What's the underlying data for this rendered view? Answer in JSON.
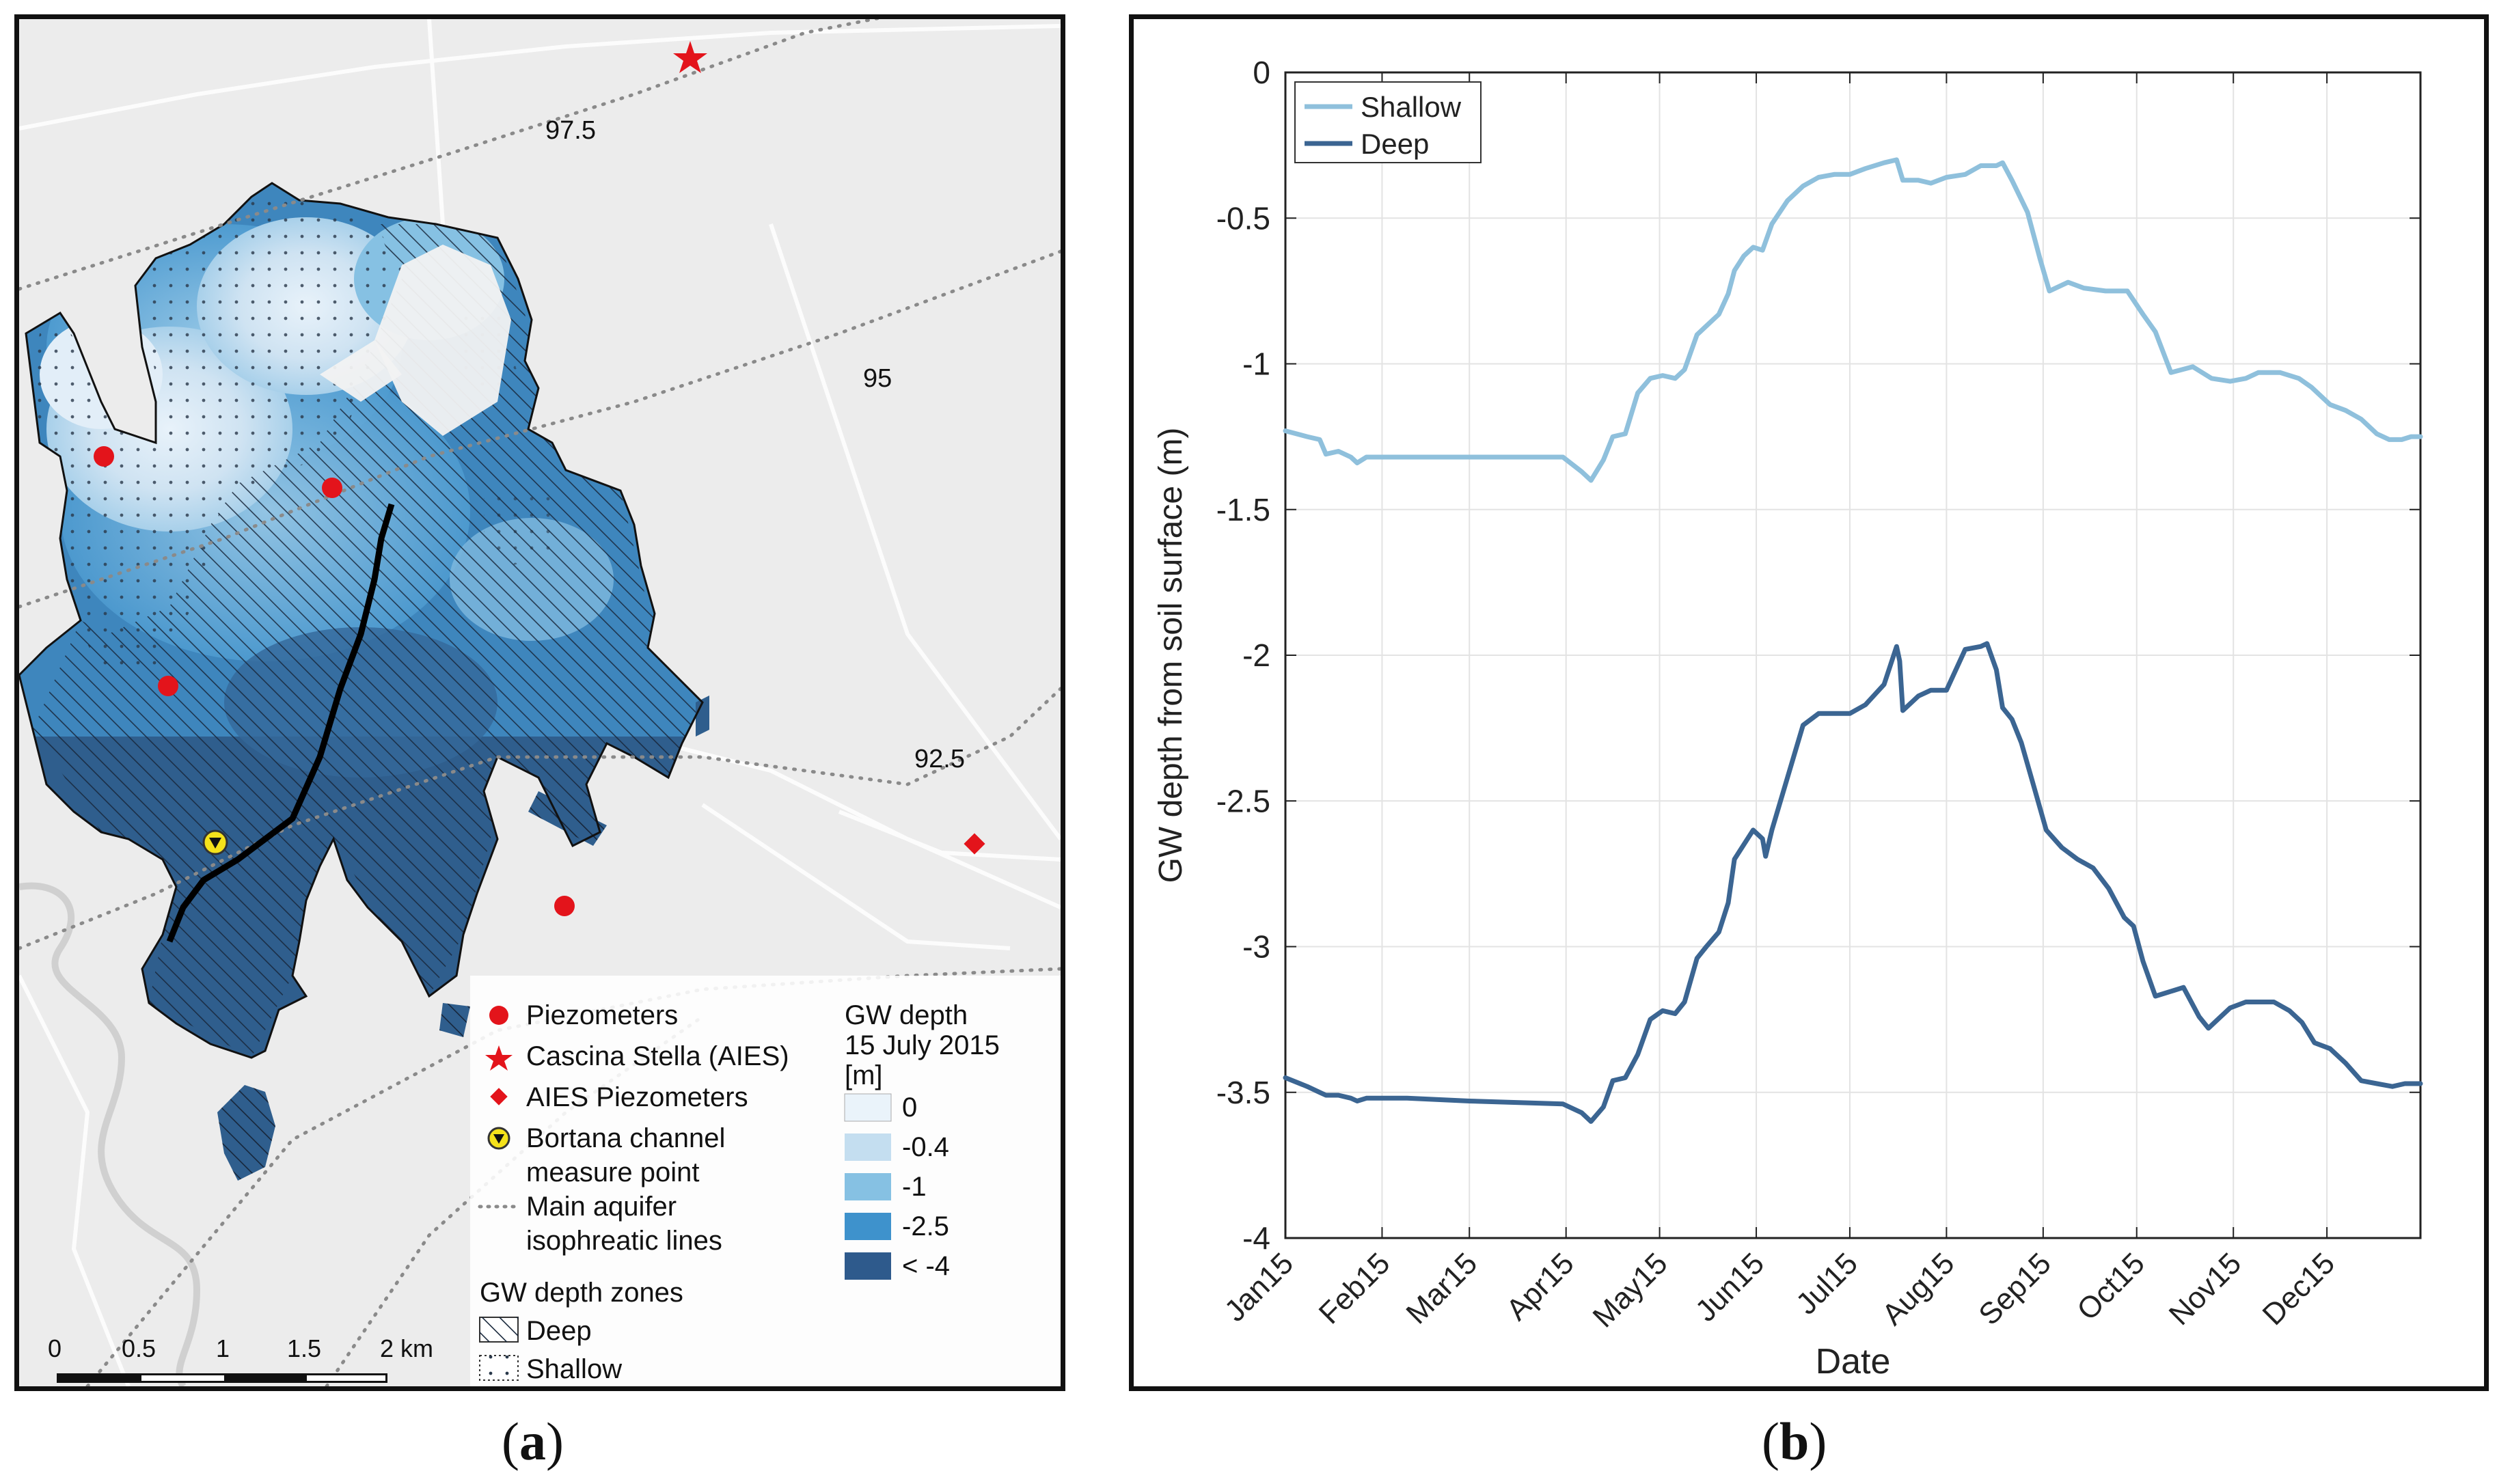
{
  "panel_a": {
    "caption_letter": "a",
    "contour_labels": [
      "97.5",
      "95",
      "92.5"
    ],
    "legend": {
      "items": [
        {
          "label": "Piezometers",
          "symbol": "red-dot-icon"
        },
        {
          "label": "Cascina Stella (AIES)",
          "symbol": "red-star-icon"
        },
        {
          "label": "AIES Piezometers",
          "symbol": "red-diamond-icon"
        },
        {
          "label": "Bortana channel",
          "symbol": "yellow-marker-icon"
        },
        {
          "label": "measure point",
          "symbol": ""
        },
        {
          "label": "Main aquifer",
          "symbol": "dotted-line-icon"
        },
        {
          "label": "isophreatic lines",
          "symbol": ""
        }
      ],
      "zones_title": "GW depth zones",
      "zones": [
        {
          "label": "Deep",
          "symbol": "hatch-icon"
        },
        {
          "label": "Shallow",
          "symbol": "dots-icon"
        }
      ],
      "depth_title_1": "GW depth",
      "depth_title_2": "15 July 2015",
      "depth_title_3": "[m]",
      "depth_classes": [
        {
          "label": "0",
          "color": "#eaf3fa"
        },
        {
          "label": "-0.4",
          "color": "#c4def0"
        },
        {
          "label": "-1",
          "color": "#86c1e3"
        },
        {
          "label": "-2.5",
          "color": "#3e92cc"
        },
        {
          "label": "< -4",
          "color": "#2e5a8c"
        }
      ]
    },
    "scale_bar": {
      "labels": [
        "0",
        "0.5",
        "1",
        "1.5",
        "2 km"
      ]
    }
  },
  "panel_b": {
    "caption_letter": "b"
  },
  "chart_data": {
    "type": "line",
    "title": "",
    "xlabel": "Date",
    "ylabel": "GW depth from soil surface (m)",
    "ylim": [
      -4,
      0
    ],
    "yticks": [
      "0",
      "-0.5",
      "-1",
      "-1.5",
      "-2",
      "-2.5",
      "-3",
      "-3.5",
      "-4"
    ],
    "xlim_days": [
      1,
      365
    ],
    "xtick_days": [
      1,
      32,
      60,
      91,
      121,
      152,
      182,
      213,
      244,
      274,
      305,
      335
    ],
    "xtick_labels": [
      "Jan15",
      "Feb15",
      "Mar15",
      "Apr15",
      "May15",
      "Jun15",
      "Jul15",
      "Aug15",
      "Sep15",
      "Oct15",
      "Nov15",
      "Dec15"
    ],
    "legend_position": "top-left",
    "grid": true,
    "series": [
      {
        "name": "Shallow",
        "color": "#8fc0dc",
        "points": [
          [
            1,
            -1.23
          ],
          [
            8,
            -1.25
          ],
          [
            12,
            -1.26
          ],
          [
            14,
            -1.31
          ],
          [
            18,
            -1.3
          ],
          [
            22,
            -1.32
          ],
          [
            24,
            -1.34
          ],
          [
            27,
            -1.32
          ],
          [
            40,
            -1.32
          ],
          [
            60,
            -1.32
          ],
          [
            90,
            -1.32
          ],
          [
            96,
            -1.37
          ],
          [
            99,
            -1.4
          ],
          [
            103,
            -1.33
          ],
          [
            106,
            -1.25
          ],
          [
            110,
            -1.24
          ],
          [
            114,
            -1.1
          ],
          [
            118,
            -1.05
          ],
          [
            122,
            -1.04
          ],
          [
            126,
            -1.05
          ],
          [
            129,
            -1.02
          ],
          [
            133,
            -0.9
          ],
          [
            136,
            -0.87
          ],
          [
            140,
            -0.83
          ],
          [
            143,
            -0.76
          ],
          [
            145,
            -0.68
          ],
          [
            148,
            -0.63
          ],
          [
            151,
            -0.6
          ],
          [
            154,
            -0.61
          ],
          [
            157,
            -0.52
          ],
          [
            162,
            -0.44
          ],
          [
            167,
            -0.39
          ],
          [
            172,
            -0.36
          ],
          [
            177,
            -0.35
          ],
          [
            182,
            -0.35
          ],
          [
            187,
            -0.33
          ],
          [
            193,
            -0.31
          ],
          [
            197,
            -0.3
          ],
          [
            199,
            -0.37
          ],
          [
            204,
            -0.37
          ],
          [
            208,
            -0.38
          ],
          [
            213,
            -0.36
          ],
          [
            219,
            -0.35
          ],
          [
            224,
            -0.32
          ],
          [
            229,
            -0.32
          ],
          [
            231,
            -0.31
          ],
          [
            234,
            -0.37
          ],
          [
            239,
            -0.48
          ],
          [
            243,
            -0.64
          ],
          [
            246,
            -0.75
          ],
          [
            252,
            -0.72
          ],
          [
            257,
            -0.74
          ],
          [
            264,
            -0.75
          ],
          [
            271,
            -0.75
          ],
          [
            276,
            -0.83
          ],
          [
            280,
            -0.89
          ],
          [
            285,
            -1.03
          ],
          [
            292,
            -1.01
          ],
          [
            298,
            -1.05
          ],
          [
            304,
            -1.06
          ],
          [
            309,
            -1.05
          ],
          [
            313,
            -1.03
          ],
          [
            320,
            -1.03
          ],
          [
            326,
            -1.05
          ],
          [
            330,
            -1.08
          ],
          [
            336,
            -1.14
          ],
          [
            341,
            -1.16
          ],
          [
            346,
            -1.19
          ],
          [
            351,
            -1.24
          ],
          [
            355,
            -1.26
          ],
          [
            359,
            -1.26
          ],
          [
            362,
            -1.25
          ],
          [
            365,
            -1.25
          ]
        ]
      },
      {
        "name": "Deep",
        "color": "#3b6592",
        "points": [
          [
            1,
            -3.45
          ],
          [
            8,
            -3.48
          ],
          [
            12,
            -3.5
          ],
          [
            14,
            -3.51
          ],
          [
            18,
            -3.51
          ],
          [
            22,
            -3.52
          ],
          [
            24,
            -3.53
          ],
          [
            27,
            -3.52
          ],
          [
            40,
            -3.52
          ],
          [
            60,
            -3.53
          ],
          [
            90,
            -3.54
          ],
          [
            96,
            -3.57
          ],
          [
            99,
            -3.6
          ],
          [
            103,
            -3.55
          ],
          [
            106,
            -3.46
          ],
          [
            110,
            -3.45
          ],
          [
            114,
            -3.37
          ],
          [
            118,
            -3.25
          ],
          [
            122,
            -3.22
          ],
          [
            126,
            -3.23
          ],
          [
            129,
            -3.19
          ],
          [
            133,
            -3.04
          ],
          [
            136,
            -3.0
          ],
          [
            140,
            -2.95
          ],
          [
            143,
            -2.85
          ],
          [
            145,
            -2.7
          ],
          [
            148,
            -2.65
          ],
          [
            151,
            -2.6
          ],
          [
            154,
            -2.63
          ],
          [
            155,
            -2.69
          ],
          [
            157,
            -2.6
          ],
          [
            162,
            -2.42
          ],
          [
            167,
            -2.24
          ],
          [
            172,
            -2.2
          ],
          [
            177,
            -2.2
          ],
          [
            182,
            -2.2
          ],
          [
            187,
            -2.17
          ],
          [
            193,
            -2.1
          ],
          [
            197,
            -1.97
          ],
          [
            198,
            -2.02
          ],
          [
            199,
            -2.19
          ],
          [
            204,
            -2.14
          ],
          [
            208,
            -2.12
          ],
          [
            213,
            -2.12
          ],
          [
            219,
            -1.98
          ],
          [
            224,
            -1.97
          ],
          [
            226,
            -1.96
          ],
          [
            229,
            -2.05
          ],
          [
            231,
            -2.18
          ],
          [
            234,
            -2.22
          ],
          [
            237,
            -2.3
          ],
          [
            241,
            -2.45
          ],
          [
            245,
            -2.6
          ],
          [
            250,
            -2.66
          ],
          [
            255,
            -2.7
          ],
          [
            260,
            -2.73
          ],
          [
            265,
            -2.8
          ],
          [
            270,
            -2.9
          ],
          [
            273,
            -2.93
          ],
          [
            276,
            -3.05
          ],
          [
            280,
            -3.17
          ],
          [
            286,
            -3.15
          ],
          [
            289,
            -3.14
          ],
          [
            294,
            -3.24
          ],
          [
            297,
            -3.28
          ],
          [
            300,
            -3.25
          ],
          [
            304,
            -3.21
          ],
          [
            309,
            -3.19
          ],
          [
            313,
            -3.19
          ],
          [
            318,
            -3.19
          ],
          [
            323,
            -3.22
          ],
          [
            327,
            -3.26
          ],
          [
            331,
            -3.33
          ],
          [
            336,
            -3.35
          ],
          [
            341,
            -3.4
          ],
          [
            346,
            -3.46
          ],
          [
            351,
            -3.47
          ],
          [
            356,
            -3.48
          ],
          [
            360,
            -3.47
          ],
          [
            365,
            -3.47
          ]
        ]
      }
    ]
  }
}
